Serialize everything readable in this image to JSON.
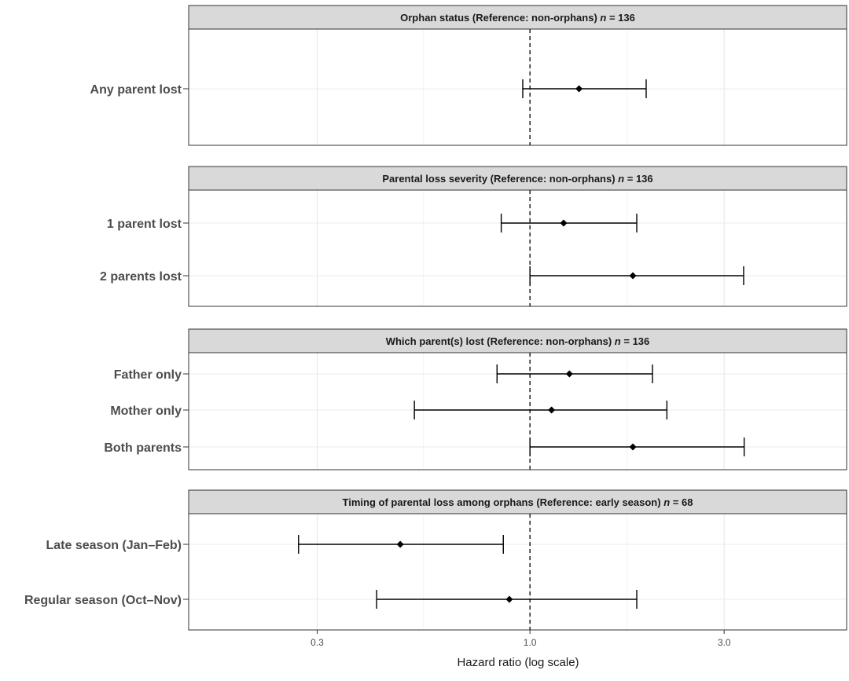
{
  "chart_data": {
    "type": "forest",
    "xlabel": "Hazard ratio (log scale)",
    "x_scale": "log",
    "xlim": [
      0.145,
      6.0
    ],
    "x_ticks": [
      0.3,
      1.0,
      3.0
    ],
    "x_tick_labels": [
      "0.3",
      "1.0",
      "3.0"
    ],
    "reference_line": 1.0,
    "grid": true,
    "panels": [
      {
        "title_parts": [
          "Orphan status (Reference: non-orphans) ",
          "n",
          " = 136"
        ],
        "rows": [
          {
            "label": "Any parent lost",
            "hr": 1.32,
            "lower": 0.96,
            "upper": 1.93
          }
        ]
      },
      {
        "title_parts": [
          "Parental loss severity (Reference: non-orphans) ",
          "n",
          " = 136"
        ],
        "rows": [
          {
            "label": "1 parent lost",
            "hr": 1.21,
            "lower": 0.85,
            "upper": 1.83
          },
          {
            "label": "2 parents lost",
            "hr": 1.79,
            "lower": 1.0,
            "upper": 3.35
          }
        ]
      },
      {
        "title_parts": [
          "Which parent(s) lost (Reference: non-orphans) ",
          "n",
          " = 136"
        ],
        "rows": [
          {
            "label": "Father only",
            "hr": 1.25,
            "lower": 0.83,
            "upper": 2.0
          },
          {
            "label": "Mother only",
            "hr": 1.13,
            "lower": 0.52,
            "upper": 2.17
          },
          {
            "label": "Both parents",
            "hr": 1.79,
            "lower": 1.0,
            "upper": 3.36
          }
        ]
      },
      {
        "title_parts": [
          "Timing of parental loss among orphans (Reference: early season) ",
          "n",
          " = 68"
        ],
        "rows": [
          {
            "label": "Late season (Jan–Feb)",
            "hr": 0.48,
            "lower": 0.27,
            "upper": 0.86
          },
          {
            "label": "Regular season (Oct–Nov)",
            "hr": 0.89,
            "lower": 0.42,
            "upper": 1.83
          }
        ]
      }
    ]
  }
}
